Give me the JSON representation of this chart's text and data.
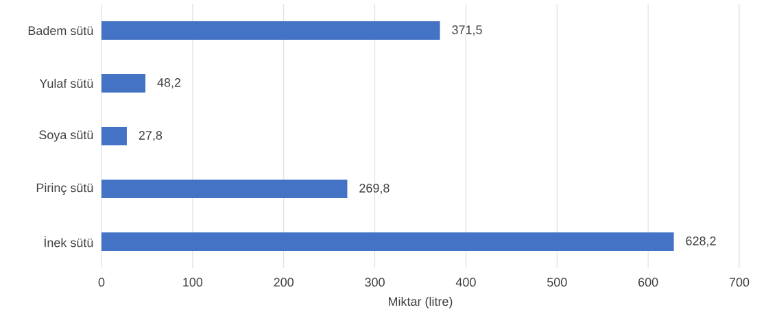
{
  "chart_data": {
    "type": "bar",
    "orientation": "horizontal",
    "xlabel": "Miktar (litre)",
    "categories": [
      "Badem sütü",
      "Yulaf sütü",
      "Soya sütü",
      "Pirinç sütü",
      "İnek sütü"
    ],
    "values": [
      371.5,
      48.2,
      27.8,
      269.8,
      628.2
    ],
    "value_labels": [
      "371,5",
      "48,2",
      "27,8",
      "269,8",
      "628,2"
    ],
    "color": "#4472c4",
    "xlim": [
      0,
      700
    ],
    "xticks": [
      0,
      100,
      200,
      300,
      400,
      500,
      600,
      700
    ],
    "grid": "x"
  }
}
